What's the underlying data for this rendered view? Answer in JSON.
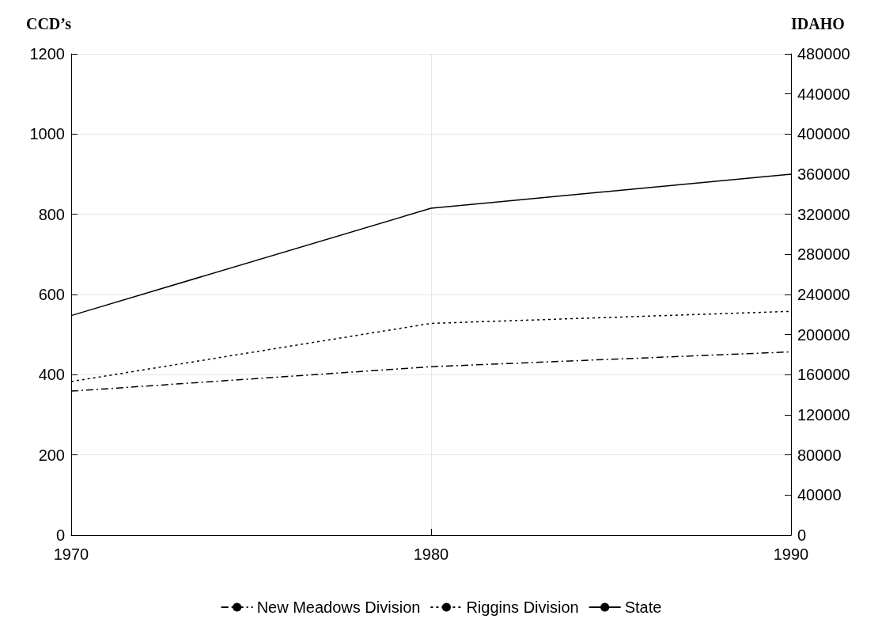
{
  "chart_data": {
    "type": "line",
    "ylabel": "CCD’s",
    "y2label": "IDAHO",
    "x": [
      1970,
      1980,
      1990
    ],
    "xlim": [
      1970,
      1990
    ],
    "xticks": [
      1970,
      1980,
      1990
    ],
    "ylim": [
      0,
      1200
    ],
    "yticks": [
      0,
      200,
      400,
      600,
      800,
      1000,
      1200
    ],
    "y2lim": [
      0,
      480000
    ],
    "y2ticks": [
      0,
      40000,
      80000,
      120000,
      160000,
      200000,
      240000,
      280000,
      320000,
      360000,
      400000,
      440000,
      480000
    ],
    "series": [
      {
        "name": "New Meadows Division",
        "color": "#000000",
        "line_style": "dashdot",
        "values": [
          359,
          420,
          457
        ]
      },
      {
        "name": "Riggins Division",
        "color": "#000000",
        "line_style": "dotted",
        "values": [
          383,
          528,
          558
        ]
      },
      {
        "name": "State",
        "color": "#000000",
        "line_style": "solid",
        "axis": "y2",
        "values": [
          219000,
          326000,
          360000
        ]
      }
    ],
    "grid": true,
    "legend": "bottom",
    "marker": "none"
  }
}
